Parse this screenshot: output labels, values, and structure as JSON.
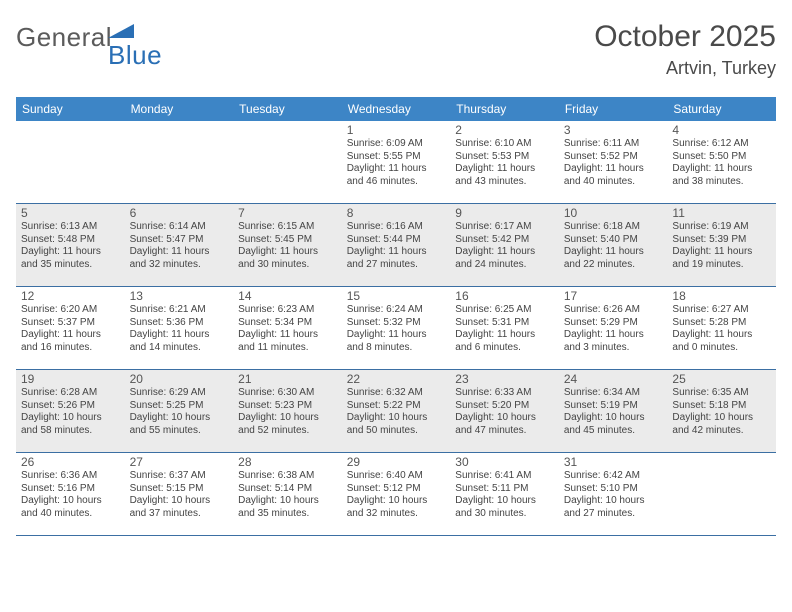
{
  "logo": {
    "word1": "General",
    "word2": "Blue"
  },
  "title": {
    "month": "October 2025",
    "location": "Artvin, Turkey"
  },
  "colors": {
    "header_bg": "#3d85c6",
    "header_text": "#ffffff",
    "row_border": "#3b6fa3",
    "alt_bg": "#ebebeb",
    "body_text": "#3a3a3a",
    "logo_gray": "#5b5b5b",
    "logo_blue": "#2a6fb5",
    "tri_fill": "#2a6fb5"
  },
  "typography": {
    "title_fontsize": 30,
    "location_fontsize": 18,
    "dayheader_fontsize": 12,
    "daynum_fontsize": 12,
    "cell_fontsize": 10
  },
  "dayNames": [
    "Sunday",
    "Monday",
    "Tuesday",
    "Wednesday",
    "Thursday",
    "Friday",
    "Saturday"
  ],
  "weeks": [
    {
      "alt": false,
      "days": [
        null,
        null,
        null,
        {
          "n": "1",
          "sr": "Sunrise: 6:09 AM",
          "ss": "Sunset: 5:55 PM",
          "d1": "Daylight: 11 hours",
          "d2": "and 46 minutes."
        },
        {
          "n": "2",
          "sr": "Sunrise: 6:10 AM",
          "ss": "Sunset: 5:53 PM",
          "d1": "Daylight: 11 hours",
          "d2": "and 43 minutes."
        },
        {
          "n": "3",
          "sr": "Sunrise: 6:11 AM",
          "ss": "Sunset: 5:52 PM",
          "d1": "Daylight: 11 hours",
          "d2": "and 40 minutes."
        },
        {
          "n": "4",
          "sr": "Sunrise: 6:12 AM",
          "ss": "Sunset: 5:50 PM",
          "d1": "Daylight: 11 hours",
          "d2": "and 38 minutes."
        }
      ]
    },
    {
      "alt": true,
      "days": [
        {
          "n": "5",
          "sr": "Sunrise: 6:13 AM",
          "ss": "Sunset: 5:48 PM",
          "d1": "Daylight: 11 hours",
          "d2": "and 35 minutes."
        },
        {
          "n": "6",
          "sr": "Sunrise: 6:14 AM",
          "ss": "Sunset: 5:47 PM",
          "d1": "Daylight: 11 hours",
          "d2": "and 32 minutes."
        },
        {
          "n": "7",
          "sr": "Sunrise: 6:15 AM",
          "ss": "Sunset: 5:45 PM",
          "d1": "Daylight: 11 hours",
          "d2": "and 30 minutes."
        },
        {
          "n": "8",
          "sr": "Sunrise: 6:16 AM",
          "ss": "Sunset: 5:44 PM",
          "d1": "Daylight: 11 hours",
          "d2": "and 27 minutes."
        },
        {
          "n": "9",
          "sr": "Sunrise: 6:17 AM",
          "ss": "Sunset: 5:42 PM",
          "d1": "Daylight: 11 hours",
          "d2": "and 24 minutes."
        },
        {
          "n": "10",
          "sr": "Sunrise: 6:18 AM",
          "ss": "Sunset: 5:40 PM",
          "d1": "Daylight: 11 hours",
          "d2": "and 22 minutes."
        },
        {
          "n": "11",
          "sr": "Sunrise: 6:19 AM",
          "ss": "Sunset: 5:39 PM",
          "d1": "Daylight: 11 hours",
          "d2": "and 19 minutes."
        }
      ]
    },
    {
      "alt": false,
      "days": [
        {
          "n": "12",
          "sr": "Sunrise: 6:20 AM",
          "ss": "Sunset: 5:37 PM",
          "d1": "Daylight: 11 hours",
          "d2": "and 16 minutes."
        },
        {
          "n": "13",
          "sr": "Sunrise: 6:21 AM",
          "ss": "Sunset: 5:36 PM",
          "d1": "Daylight: 11 hours",
          "d2": "and 14 minutes."
        },
        {
          "n": "14",
          "sr": "Sunrise: 6:23 AM",
          "ss": "Sunset: 5:34 PM",
          "d1": "Daylight: 11 hours",
          "d2": "and 11 minutes."
        },
        {
          "n": "15",
          "sr": "Sunrise: 6:24 AM",
          "ss": "Sunset: 5:32 PM",
          "d1": "Daylight: 11 hours",
          "d2": "and 8 minutes."
        },
        {
          "n": "16",
          "sr": "Sunrise: 6:25 AM",
          "ss": "Sunset: 5:31 PM",
          "d1": "Daylight: 11 hours",
          "d2": "and 6 minutes."
        },
        {
          "n": "17",
          "sr": "Sunrise: 6:26 AM",
          "ss": "Sunset: 5:29 PM",
          "d1": "Daylight: 11 hours",
          "d2": "and 3 minutes."
        },
        {
          "n": "18",
          "sr": "Sunrise: 6:27 AM",
          "ss": "Sunset: 5:28 PM",
          "d1": "Daylight: 11 hours",
          "d2": "and 0 minutes."
        }
      ]
    },
    {
      "alt": true,
      "days": [
        {
          "n": "19",
          "sr": "Sunrise: 6:28 AM",
          "ss": "Sunset: 5:26 PM",
          "d1": "Daylight: 10 hours",
          "d2": "and 58 minutes."
        },
        {
          "n": "20",
          "sr": "Sunrise: 6:29 AM",
          "ss": "Sunset: 5:25 PM",
          "d1": "Daylight: 10 hours",
          "d2": "and 55 minutes."
        },
        {
          "n": "21",
          "sr": "Sunrise: 6:30 AM",
          "ss": "Sunset: 5:23 PM",
          "d1": "Daylight: 10 hours",
          "d2": "and 52 minutes."
        },
        {
          "n": "22",
          "sr": "Sunrise: 6:32 AM",
          "ss": "Sunset: 5:22 PM",
          "d1": "Daylight: 10 hours",
          "d2": "and 50 minutes."
        },
        {
          "n": "23",
          "sr": "Sunrise: 6:33 AM",
          "ss": "Sunset: 5:20 PM",
          "d1": "Daylight: 10 hours",
          "d2": "and 47 minutes."
        },
        {
          "n": "24",
          "sr": "Sunrise: 6:34 AM",
          "ss": "Sunset: 5:19 PM",
          "d1": "Daylight: 10 hours",
          "d2": "and 45 minutes."
        },
        {
          "n": "25",
          "sr": "Sunrise: 6:35 AM",
          "ss": "Sunset: 5:18 PM",
          "d1": "Daylight: 10 hours",
          "d2": "and 42 minutes."
        }
      ]
    },
    {
      "alt": false,
      "days": [
        {
          "n": "26",
          "sr": "Sunrise: 6:36 AM",
          "ss": "Sunset: 5:16 PM",
          "d1": "Daylight: 10 hours",
          "d2": "and 40 minutes."
        },
        {
          "n": "27",
          "sr": "Sunrise: 6:37 AM",
          "ss": "Sunset: 5:15 PM",
          "d1": "Daylight: 10 hours",
          "d2": "and 37 minutes."
        },
        {
          "n": "28",
          "sr": "Sunrise: 6:38 AM",
          "ss": "Sunset: 5:14 PM",
          "d1": "Daylight: 10 hours",
          "d2": "and 35 minutes."
        },
        {
          "n": "29",
          "sr": "Sunrise: 6:40 AM",
          "ss": "Sunset: 5:12 PM",
          "d1": "Daylight: 10 hours",
          "d2": "and 32 minutes."
        },
        {
          "n": "30",
          "sr": "Sunrise: 6:41 AM",
          "ss": "Sunset: 5:11 PM",
          "d1": "Daylight: 10 hours",
          "d2": "and 30 minutes."
        },
        {
          "n": "31",
          "sr": "Sunrise: 6:42 AM",
          "ss": "Sunset: 5:10 PM",
          "d1": "Daylight: 10 hours",
          "d2": "and 27 minutes."
        },
        null
      ]
    }
  ]
}
